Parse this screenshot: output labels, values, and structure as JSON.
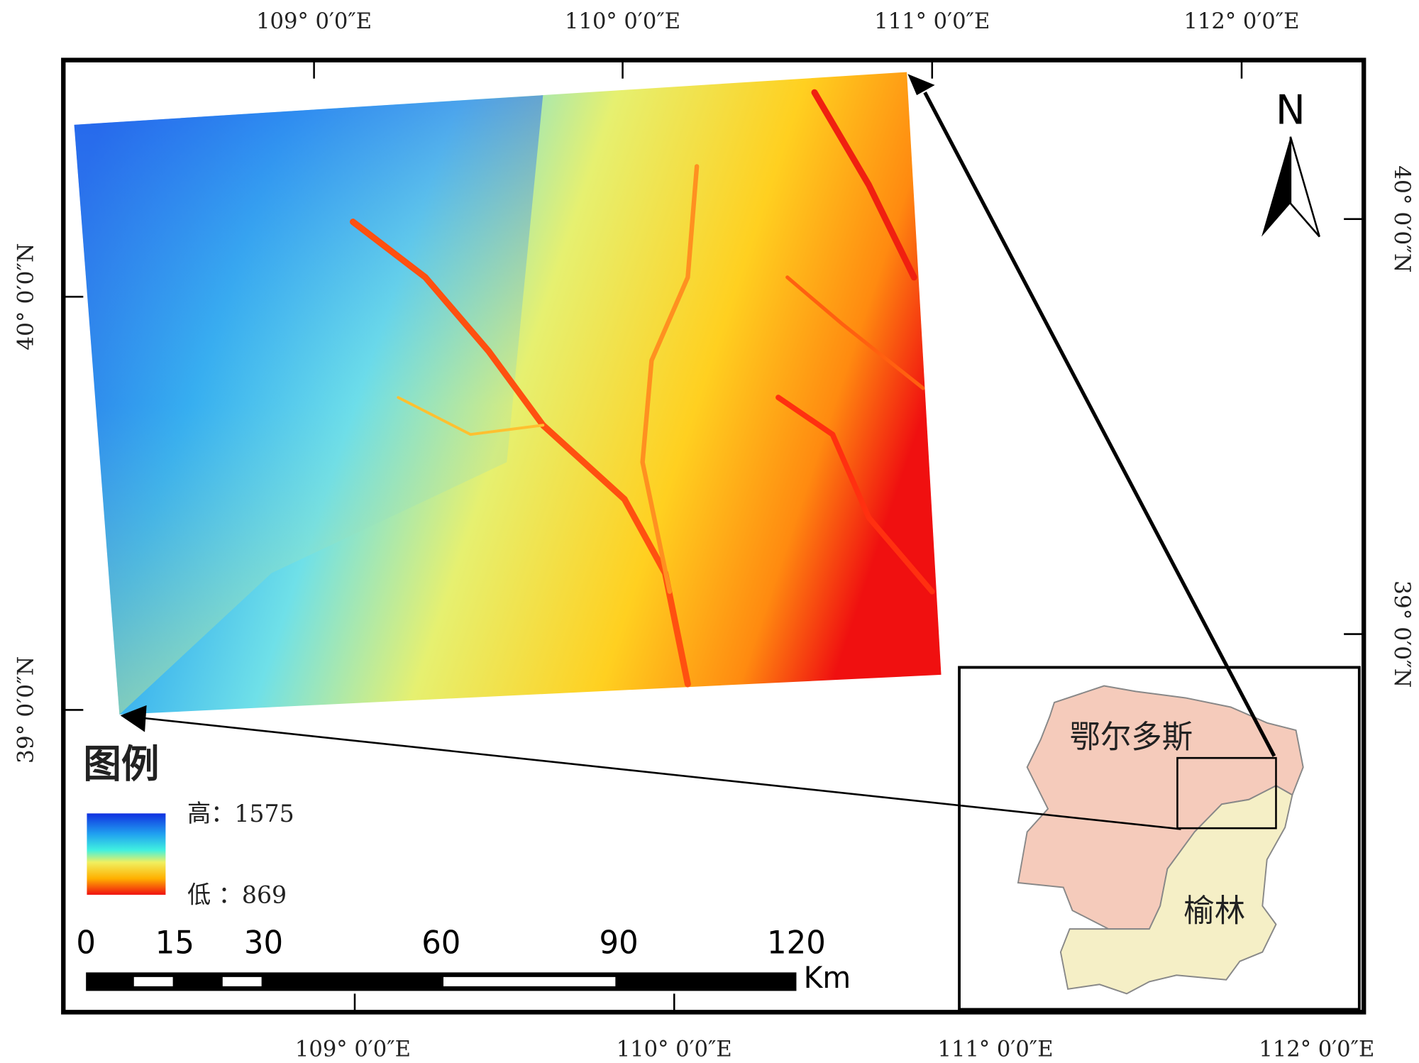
{
  "map": {
    "top_labels": [
      "109° 0′0″E",
      "110° 0′0″E",
      "111° 0′0″E",
      "112° 0′0″E"
    ],
    "bottom_labels": [
      "109° 0′0″E",
      "110° 0′0″E",
      "111° 0′0″E",
      "112° 0′0″E"
    ],
    "left_labels": [
      "40° 0′0″N",
      "39° 0′0″N"
    ],
    "right_labels": [
      "40° 0′0″N",
      "39° 0′0″N"
    ],
    "north": "N",
    "legend": {
      "title": "图例",
      "high": "高：1575",
      "low": "低 ：869"
    },
    "scale_bar": {
      "labels": [
        0,
        15,
        30,
        60,
        90,
        120
      ],
      "unit": "Km"
    },
    "inset": {
      "labels": [
        "鄂尔多斯",
        "榆林"
      ]
    }
  }
}
